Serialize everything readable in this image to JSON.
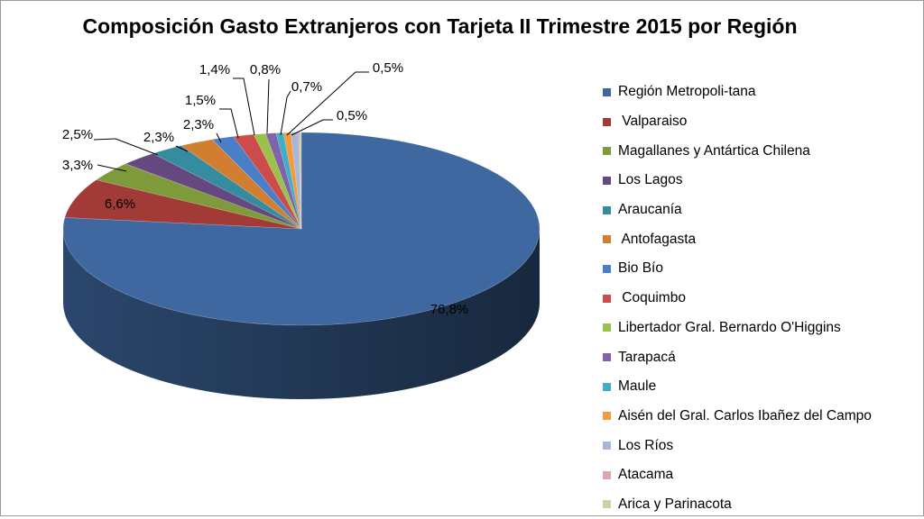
{
  "chart_data": {
    "type": "pie",
    "title": "Composición Gasto Extranjeros con Tarjeta II Trimestre 2015 por Región",
    "legend_position": "right",
    "slices": [
      {
        "label": "Región Metropoli-tana",
        "value": 76.8,
        "display": "76,8%",
        "color": "#3F68A0"
      },
      {
        "label": " Valparaiso",
        "value": 6.6,
        "display": "6,6%",
        "color": "#A23B37"
      },
      {
        "label": "Magallanes y Antártica Chilena",
        "value": 3.3,
        "display": "3,3%",
        "color": "#7E9A3B"
      },
      {
        "label": "Los Lagos",
        "value": 2.5,
        "display": "2,5%",
        "color": "#65487F"
      },
      {
        "label": "Araucanía",
        "value": 2.3,
        "display": "2,3%",
        "color": "#348C9E"
      },
      {
        "label": " Antofagasta",
        "value": 2.3,
        "display": "2,3%",
        "color": "#D17E31"
      },
      {
        "label": "Bio Bío",
        "value": 1.5,
        "display": "1,5%",
        "color": "#4A7EC8"
      },
      {
        "label": " Coquimbo",
        "value": 1.4,
        "display": "1,4%",
        "color": "#CB4C4A"
      },
      {
        "label": "Libertador Gral. Bernardo O'Higgins",
        "value": 0.8,
        "display": "0,8%",
        "color": "#9CC14A"
      },
      {
        "label": "Tarapacá",
        "value": 0.7,
        "display": "0,7%",
        "color": "#8164A8"
      },
      {
        "label": "Maule",
        "value": 0.5,
        "display": "0,5%",
        "color": "#3FAFC8"
      },
      {
        "label": "Aisén del Gral. Carlos Ibañez del Campo",
        "value": 0.5,
        "display": "0,5%",
        "color": "#F39A3C"
      },
      {
        "label": "Los Ríos",
        "value": 0.5,
        "display": "",
        "color": "#A8B6D8"
      },
      {
        "label": "Atacama",
        "value": 0.1,
        "display": "",
        "color": "#D8A7A6"
      },
      {
        "label": "Arica y Parinacota",
        "value": 0.1,
        "display": "",
        "color": "#C3D7A6"
      }
    ]
  }
}
